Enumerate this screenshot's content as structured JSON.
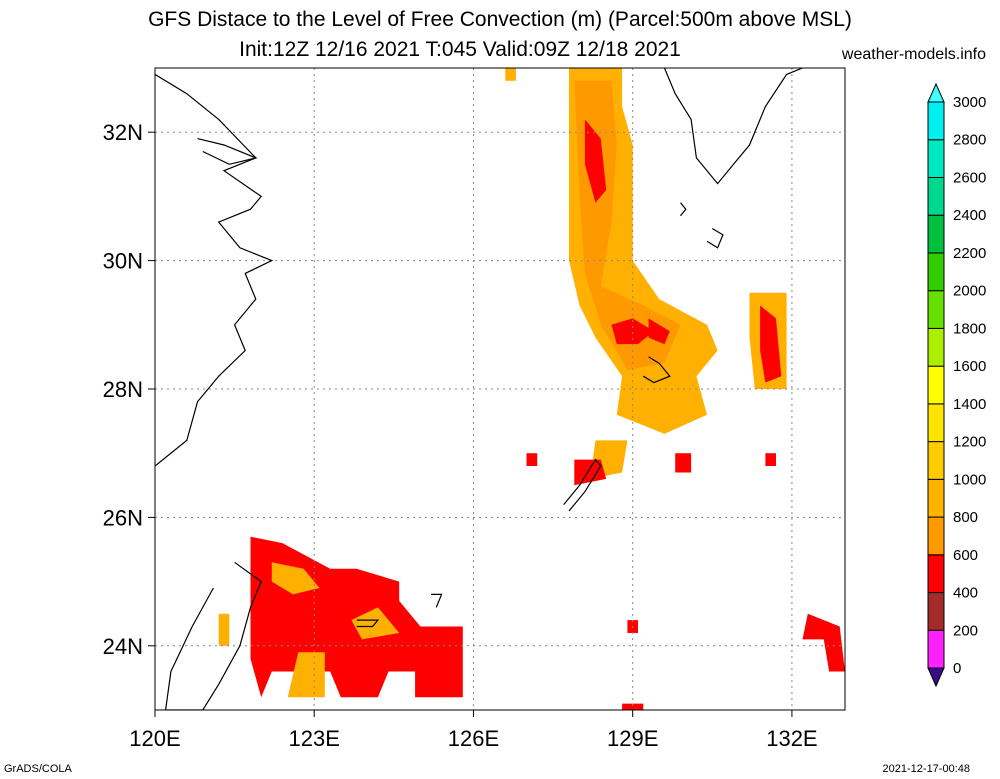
{
  "title": "GFS Distace to the Level of Free Convection (m) (Parcel:500m above MSL)",
  "subtitle": "Init:12Z 12/16 2021 T:045 Valid:09Z 12/18 2021",
  "site": "weather-models.info",
  "credit": "GrADS/COLA",
  "timestamp": "2021-12-17-00:48",
  "extent": {
    "lon": [
      120,
      133
    ],
    "lat": [
      23,
      33
    ]
  },
  "lon_ticks": [
    {
      "value": 120,
      "label": "120E"
    },
    {
      "value": 123,
      "label": "123E"
    },
    {
      "value": 126,
      "label": "126E"
    },
    {
      "value": 129,
      "label": "129E"
    },
    {
      "value": 132,
      "label": "132E"
    }
  ],
  "lat_ticks": [
    {
      "value": 24,
      "label": "24N"
    },
    {
      "value": 26,
      "label": "26N"
    },
    {
      "value": 28,
      "label": "28N"
    },
    {
      "value": 30,
      "label": "30N"
    },
    {
      "value": 32,
      "label": "32N"
    }
  ],
  "colorbar": {
    "levels": [
      "0",
      "200",
      "400",
      "600",
      "800",
      "1000",
      "1200",
      "1400",
      "1600",
      "1800",
      "2000",
      "2200",
      "2400",
      "2600",
      "2800",
      "3000"
    ],
    "colors": [
      "#3b0a8a",
      "#ff22ff",
      "#a52a2a",
      "#ff0000",
      "#ff9900",
      "#ffb400",
      "#ffcc00",
      "#ffe600",
      "#ffff00",
      "#aaf000",
      "#66e000",
      "#33cc00",
      "#00c040",
      "#00d890",
      "#00e8c0",
      "#00f0f0",
      "#40ffff"
    ]
  },
  "fields": [
    {
      "name": "north-band",
      "color": "#ffb000",
      "pts": [
        [
          127.8,
          33
        ],
        [
          128.8,
          33
        ],
        [
          128.8,
          32.4
        ],
        [
          129,
          31.8
        ],
        [
          129,
          30
        ],
        [
          129.5,
          29.4
        ],
        [
          130.4,
          29
        ],
        [
          130.6,
          28.6
        ],
        [
          130.2,
          28.2
        ],
        [
          130.4,
          27.6
        ],
        [
          129.6,
          27.3
        ],
        [
          128.7,
          27.6
        ],
        [
          128.8,
          28.2
        ],
        [
          128.3,
          28.8
        ],
        [
          128,
          29.3
        ],
        [
          127.8,
          30
        ],
        [
          127.8,
          31
        ]
      ]
    },
    {
      "name": "north-band-core",
      "color": "#ff9900",
      "pts": [
        [
          127.9,
          32.8
        ],
        [
          128.6,
          32.8
        ],
        [
          128.7,
          31.8
        ],
        [
          128.6,
          30.6
        ],
        [
          128.4,
          29.6
        ],
        [
          129.2,
          29.3
        ],
        [
          129.9,
          29
        ],
        [
          129.6,
          28.4
        ],
        [
          128.9,
          28.3
        ],
        [
          128.4,
          29
        ],
        [
          128.1,
          29.8
        ],
        [
          128,
          31
        ]
      ]
    },
    {
      "name": "north-band-red",
      "color": "#ff0000",
      "pts": [
        [
          128.1,
          32.2
        ],
        [
          128.4,
          31.9
        ],
        [
          128.5,
          31.1
        ],
        [
          128.3,
          30.9
        ],
        [
          128.1,
          31.5
        ]
      ]
    },
    {
      "name": "red-blob-28n",
      "color": "#ff0000",
      "pts": [
        [
          128.6,
          29.0
        ],
        [
          129.0,
          29.1
        ],
        [
          129.4,
          28.9
        ],
        [
          129.1,
          28.7
        ],
        [
          128.7,
          28.7
        ]
      ]
    },
    {
      "name": "red-blob-29n",
      "color": "#ff0000",
      "pts": [
        [
          129.3,
          29.1
        ],
        [
          129.7,
          28.9
        ],
        [
          129.6,
          28.7
        ],
        [
          129.3,
          28.8
        ]
      ]
    },
    {
      "name": "strip-27n",
      "color": "#ffb000",
      "pts": [
        [
          128.3,
          27.2
        ],
        [
          128.9,
          27.2
        ],
        [
          128.8,
          26.7
        ],
        [
          128.2,
          26.6
        ]
      ]
    },
    {
      "name": "red-26n",
      "color": "#ff0000",
      "pts": [
        [
          127.9,
          26.9
        ],
        [
          128.4,
          26.9
        ],
        [
          128.5,
          26.6
        ],
        [
          127.9,
          26.5
        ]
      ]
    },
    {
      "name": "east-strip",
      "color": "#ffb000",
      "pts": [
        [
          131.2,
          29.5
        ],
        [
          131.9,
          29.5
        ],
        [
          131.9,
          28
        ],
        [
          131.3,
          28
        ],
        [
          131.2,
          28.8
        ]
      ]
    },
    {
      "name": "east-strip-red",
      "color": "#ff0000",
      "pts": [
        [
          131.4,
          29.3
        ],
        [
          131.7,
          29.1
        ],
        [
          131.8,
          28.2
        ],
        [
          131.5,
          28.1
        ],
        [
          131.4,
          28.6
        ]
      ]
    },
    {
      "name": "taiwan-area",
      "color": "#ff0000",
      "pts": [
        [
          121.8,
          25.7
        ],
        [
          122.4,
          25.6
        ],
        [
          123.3,
          25.2
        ],
        [
          123.8,
          25.2
        ],
        [
          124.6,
          25.0
        ],
        [
          124.6,
          24.7
        ],
        [
          125,
          24.3
        ],
        [
          125.8,
          24.3
        ],
        [
          125.8,
          23.2
        ],
        [
          124.9,
          23.2
        ],
        [
          124.9,
          23.6
        ],
        [
          124.4,
          23.6
        ],
        [
          124.2,
          23.2
        ],
        [
          123.5,
          23.2
        ],
        [
          123.3,
          23.6
        ],
        [
          122.2,
          23.6
        ],
        [
          122,
          23.2
        ],
        [
          121.8,
          23.8
        ],
        [
          121.8,
          24.7
        ]
      ]
    },
    {
      "name": "taiwan-area-orange",
      "color": "#ffb000",
      "pts": [
        [
          122.2,
          25.3
        ],
        [
          122.8,
          25.2
        ],
        [
          123.1,
          24.9
        ],
        [
          122.6,
          24.8
        ],
        [
          122.2,
          25.0
        ]
      ]
    },
    {
      "name": "taiwan-area-orange-2",
      "color": "#ffb000",
      "pts": [
        [
          123.7,
          24.4
        ],
        [
          124.2,
          24.6
        ],
        [
          124.6,
          24.2
        ],
        [
          123.9,
          24.1
        ]
      ]
    },
    {
      "name": "taiwan-area-orange-3",
      "color": "#ffb000",
      "pts": [
        [
          122.7,
          23.9
        ],
        [
          123.2,
          23.9
        ],
        [
          123.2,
          23.2
        ],
        [
          122.5,
          23.2
        ]
      ]
    },
    {
      "name": "east-red-24n",
      "color": "#ff0000",
      "pts": [
        [
          132.3,
          24.5
        ],
        [
          132.9,
          24.3
        ],
        [
          133,
          23.6
        ],
        [
          132.7,
          23.6
        ],
        [
          132.6,
          24.1
        ],
        [
          132.2,
          24.1
        ]
      ]
    },
    {
      "name": "small-red-1",
      "color": "#ff0000",
      "pts": [
        [
          128.9,
          24.4
        ],
        [
          129.1,
          24.4
        ],
        [
          129.1,
          24.2
        ],
        [
          128.9,
          24.2
        ]
      ]
    },
    {
      "name": "small-red-2",
      "color": "#ff0000",
      "pts": [
        [
          128.8,
          23.1
        ],
        [
          129.2,
          23.1
        ],
        [
          129.2,
          22.95
        ],
        [
          128.8,
          22.95
        ]
      ]
    },
    {
      "name": "small-red-3",
      "color": "#ff0000",
      "pts": [
        [
          127.0,
          27
        ],
        [
          127.2,
          27
        ],
        [
          127.2,
          26.8
        ],
        [
          127.0,
          26.8
        ]
      ]
    },
    {
      "name": "small-red-4",
      "color": "#ff0000",
      "pts": [
        [
          129.8,
          27.0
        ],
        [
          130.1,
          27.0
        ],
        [
          130.1,
          26.7
        ],
        [
          129.8,
          26.7
        ]
      ]
    },
    {
      "name": "small-red-5",
      "color": "#ff0000",
      "pts": [
        [
          131.5,
          27.0
        ],
        [
          131.7,
          27.0
        ],
        [
          131.7,
          26.8
        ],
        [
          131.5,
          26.8
        ]
      ]
    },
    {
      "name": "small-orange-1",
      "color": "#ffb000",
      "pts": [
        [
          126.6,
          33
        ],
        [
          126.8,
          33
        ],
        [
          126.8,
          32.8
        ],
        [
          126.6,
          32.8
        ]
      ]
    },
    {
      "name": "small-orange-2",
      "color": "#ffb000",
      "pts": [
        [
          121.2,
          24.5
        ],
        [
          121.4,
          24.5
        ],
        [
          121.4,
          24.0
        ],
        [
          121.2,
          24.0
        ]
      ]
    }
  ],
  "coastlines": [
    {
      "name": "china-coast-north",
      "pts": [
        [
          120,
          32.9
        ],
        [
          120.6,
          32.6
        ],
        [
          121.2,
          32.2
        ],
        [
          121.9,
          31.6
        ],
        [
          121.3,
          31.4
        ],
        [
          122.0,
          31.0
        ],
        [
          121.8,
          30.8
        ],
        [
          121.2,
          30.6
        ],
        [
          121.6,
          30.2
        ],
        [
          122.2,
          30.0
        ],
        [
          121.7,
          29.8
        ],
        [
          121.9,
          29.4
        ],
        [
          121.5,
          29.0
        ],
        [
          121.7,
          28.6
        ],
        [
          121.2,
          28.2
        ],
        [
          120.8,
          27.8
        ],
        [
          120.6,
          27.2
        ],
        [
          120.0,
          26.8
        ]
      ]
    },
    {
      "name": "yangtze-estuary",
      "pts": [
        [
          120.8,
          31.9
        ],
        [
          121.3,
          31.8
        ],
        [
          121.9,
          31.6
        ],
        [
          121.4,
          31.5
        ],
        [
          120.9,
          31.7
        ]
      ]
    },
    {
      "name": "taiwan",
      "pts": [
        [
          121.5,
          25.3
        ],
        [
          122.0,
          25.0
        ],
        [
          121.8,
          24.6
        ],
        [
          121.6,
          24.0
        ],
        [
          121.2,
          23.4
        ],
        [
          120.9,
          23.0
        ],
        [
          120.2,
          23.0
        ],
        [
          120.3,
          23.6
        ],
        [
          120.7,
          24.3
        ],
        [
          121.1,
          24.9
        ]
      ]
    },
    {
      "name": "kyushu",
      "pts": [
        [
          129.6,
          33
        ],
        [
          129.8,
          32.6
        ],
        [
          130.1,
          32.2
        ],
        [
          130.2,
          31.6
        ],
        [
          130.6,
          31.2
        ],
        [
          130.9,
          31.5
        ],
        [
          131.2,
          31.8
        ],
        [
          131.5,
          32.4
        ],
        [
          131.9,
          32.9
        ],
        [
          132.2,
          33
        ]
      ]
    },
    {
      "name": "amami-oshima",
      "pts": [
        [
          129.3,
          28.5
        ],
        [
          129.5,
          28.4
        ],
        [
          129.7,
          28.2
        ],
        [
          129.4,
          28.1
        ],
        [
          129.2,
          28.2
        ]
      ]
    },
    {
      "name": "okinawa",
      "pts": [
        [
          127.7,
          26.2
        ],
        [
          128.0,
          26.5
        ],
        [
          128.3,
          26.9
        ],
        [
          128.4,
          26.8
        ],
        [
          128.1,
          26.4
        ],
        [
          127.8,
          26.1
        ]
      ]
    },
    {
      "name": "yaku-tanega",
      "pts": [
        [
          130.5,
          30.5
        ],
        [
          130.7,
          30.4
        ],
        [
          130.6,
          30.2
        ],
        [
          130.4,
          30.3
        ]
      ]
    },
    {
      "name": "miyako",
      "pts": [
        [
          125.2,
          24.8
        ],
        [
          125.4,
          24.8
        ],
        [
          125.3,
          24.6
        ]
      ]
    },
    {
      "name": "ishigaki",
      "pts": [
        [
          123.8,
          24.4
        ],
        [
          124.2,
          24.4
        ],
        [
          124.1,
          24.3
        ],
        [
          123.8,
          24.3
        ]
      ]
    },
    {
      "name": "tokara",
      "pts": [
        [
          129.9,
          30.9
        ],
        [
          130.0,
          30.8
        ],
        [
          129.9,
          30.7
        ]
      ]
    }
  ]
}
